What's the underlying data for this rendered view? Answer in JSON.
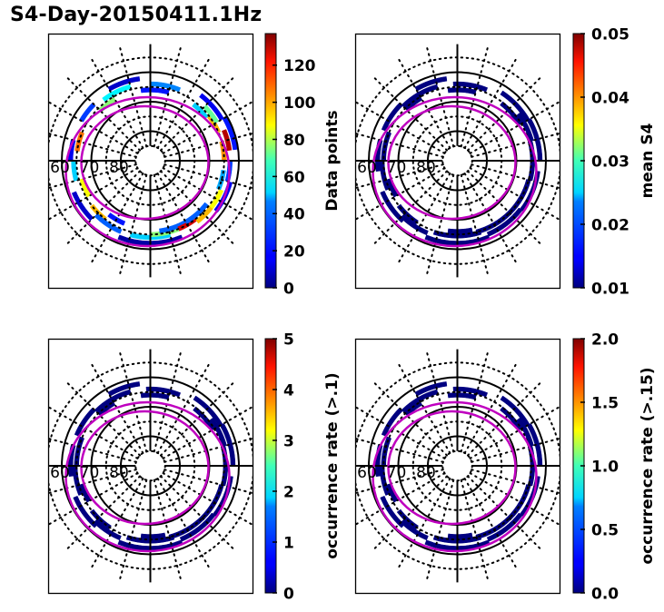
{
  "figure": {
    "title": "S4-Day-20150411.1Hz"
  },
  "chart_data": [
    {
      "type": "heatmap",
      "projection": "polar (magnetic latitude / MLT)",
      "title": "",
      "colorbar": {
        "label": "Data points",
        "range": [
          0,
          137
        ],
        "ticks": [
          0,
          20,
          40,
          60,
          80,
          100,
          120
        ],
        "tick_labels": [
          "0",
          "20",
          "40",
          "60",
          "80",
          "100",
          "120"
        ],
        "colormap": "jet"
      },
      "latitude_labels": [
        "60",
        "70",
        "80"
      ],
      "latitude_circles": [
        80,
        70,
        60
      ],
      "dotted_circles": [
        85,
        75,
        65,
        55
      ],
      "meridians_dotted_hours": 24,
      "oval_boundaries": [
        "poleward",
        "equatorward"
      ],
      "cells": [
        {
          "lat": 62,
          "mlt_start": 22.5,
          "mlt_end": 1.5,
          "value": 5
        },
        {
          "lat": 64,
          "mlt_start": 23.0,
          "mlt_end": 1.0,
          "value": 45
        },
        {
          "lat": 65,
          "mlt_start": 0.0,
          "mlt_end": 1.5,
          "value": 70
        },
        {
          "lat": 66,
          "mlt_start": 0.5,
          "mlt_end": 2.0,
          "value": 30
        },
        {
          "lat": 65,
          "mlt_start": 1.5,
          "mlt_end": 2.5,
          "value": 125
        },
        {
          "lat": 64,
          "mlt_start": 2.5,
          "mlt_end": 3.5,
          "value": 95
        },
        {
          "lat": 66,
          "mlt_start": 2.0,
          "mlt_end": 3.5,
          "value": 30
        },
        {
          "lat": 64,
          "mlt_start": 3.5,
          "mlt_end": 4.5,
          "value": 85
        },
        {
          "lat": 62,
          "mlt_start": 3.5,
          "mlt_end": 5.0,
          "value": 15
        },
        {
          "lat": 65,
          "mlt_start": 4.5,
          "mlt_end": 5.5,
          "value": 40
        },
        {
          "lat": 63,
          "mlt_start": 5.0,
          "mlt_end": 6.0,
          "value": 25
        },
        {
          "lat": 65,
          "mlt_start": 6.0,
          "mlt_end": 7.0,
          "value": 100
        },
        {
          "lat": 63,
          "mlt_start": 6.5,
          "mlt_end": 7.5,
          "value": 130
        },
        {
          "lat": 61,
          "mlt_start": 6.5,
          "mlt_end": 8.0,
          "value": 20
        },
        {
          "lat": 65,
          "mlt_start": 7.5,
          "mlt_end": 8.5,
          "value": 95
        },
        {
          "lat": 64,
          "mlt_start": 8.0,
          "mlt_end": 9.0,
          "value": 65
        },
        {
          "lat": 62,
          "mlt_start": 8.0,
          "mlt_end": 9.5,
          "value": 15
        },
        {
          "lat": 66,
          "mlt_start": 8.5,
          "mlt_end": 9.5,
          "value": 45
        },
        {
          "lat": 64,
          "mlt_start": 10.5,
          "mlt_end": 12.0,
          "value": 35
        },
        {
          "lat": 66,
          "mlt_start": 11.0,
          "mlt_end": 12.5,
          "value": 20
        },
        {
          "lat": 62,
          "mlt_start": 12.5,
          "mlt_end": 14.0,
          "value": 10
        },
        {
          "lat": 64,
          "mlt_start": 13.0,
          "mlt_end": 14.5,
          "value": 50
        },
        {
          "lat": 66,
          "mlt_start": 14.0,
          "mlt_end": 15.0,
          "value": 70
        },
        {
          "lat": 63,
          "mlt_start": 15.0,
          "mlt_end": 16.0,
          "value": 25
        },
        {
          "lat": 65,
          "mlt_start": 16.5,
          "mlt_end": 17.5,
          "value": 105
        },
        {
          "lat": 63,
          "mlt_start": 17.0,
          "mlt_end": 18.0,
          "value": 15
        },
        {
          "lat": 64,
          "mlt_start": 18.0,
          "mlt_end": 19.0,
          "value": 45
        },
        {
          "lat": 66,
          "mlt_start": 19.0,
          "mlt_end": 20.0,
          "value": 85
        },
        {
          "lat": 62,
          "mlt_start": 19.5,
          "mlt_end": 21.0,
          "value": 10
        },
        {
          "lat": 65,
          "mlt_start": 20.5,
          "mlt_end": 21.5,
          "value": 95
        },
        {
          "lat": 64,
          "mlt_start": 21.0,
          "mlt_end": 22.5,
          "value": 30
        },
        {
          "lat": 67,
          "mlt_start": 21.5,
          "mlt_end": 22.5,
          "value": 20
        }
      ]
    },
    {
      "type": "heatmap",
      "projection": "polar (magnetic latitude / MLT)",
      "title": "",
      "colorbar": {
        "label": "mean S4",
        "range": [
          0.01,
          0.05
        ],
        "ticks": [
          0.01,
          0.02,
          0.03,
          0.04,
          0.05
        ],
        "tick_labels": [
          "0.01",
          "0.02",
          "0.03",
          "0.04",
          "0.05"
        ],
        "colormap": "jet"
      },
      "latitude_labels": [
        "60",
        "70",
        "80"
      ],
      "latitude_circles": [
        80,
        70,
        60
      ],
      "dotted_circles": [
        85,
        75,
        65,
        55
      ],
      "meridians_dotted_hours": 24,
      "oval_boundaries": [
        "poleward",
        "equatorward"
      ],
      "uniform_value": 0.01,
      "band_lat_range": [
        61,
        67
      ]
    },
    {
      "type": "heatmap",
      "projection": "polar (magnetic latitude / MLT)",
      "title": "",
      "colorbar": {
        "label": "occurrence rate (>.1)",
        "range": [
          0,
          5
        ],
        "ticks": [
          0,
          1,
          2,
          3,
          4,
          5
        ],
        "tick_labels": [
          "0",
          "1",
          "2",
          "3",
          "4",
          "5"
        ],
        "colormap": "jet"
      },
      "latitude_labels": [
        "60",
        "70",
        "80"
      ],
      "latitude_circles": [
        80,
        70,
        60
      ],
      "dotted_circles": [
        85,
        75,
        65,
        55
      ],
      "meridians_dotted_hours": 24,
      "oval_boundaries": [
        "poleward",
        "equatorward"
      ],
      "uniform_value": 0,
      "band_lat_range": [
        61,
        67
      ]
    },
    {
      "type": "heatmap",
      "projection": "polar (magnetic latitude / MLT)",
      "title": "",
      "colorbar": {
        "label": "occurrence rate (>.15)",
        "range": [
          0.0,
          2.0
        ],
        "ticks": [
          0.0,
          0.5,
          1.0,
          1.5,
          2.0
        ],
        "tick_labels": [
          "0.0",
          "0.5",
          "1.0",
          "1.5",
          "2.0"
        ],
        "colormap": "jet"
      },
      "latitude_labels": [
        "60",
        "70",
        "80"
      ],
      "latitude_circles": [
        80,
        70,
        60
      ],
      "dotted_circles": [
        85,
        75,
        65,
        55
      ],
      "meridians_dotted_hours": 24,
      "oval_boundaries": [
        "poleward",
        "equatorward"
      ],
      "uniform_value": 0.0,
      "band_lat_range": [
        61,
        67
      ]
    }
  ]
}
